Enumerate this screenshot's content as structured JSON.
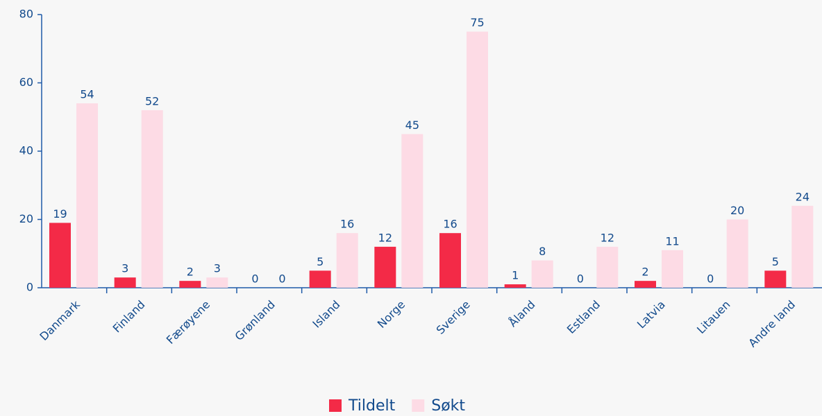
{
  "chart_data": {
    "type": "bar",
    "categories": [
      "Danmark",
      "Finland",
      "Færøyene",
      "Grønland",
      "Island",
      "Norge",
      "Sverige",
      "Åland",
      "Estland",
      "Latvia",
      "Litauen",
      "Andre land"
    ],
    "series": [
      {
        "name": "Tildelt",
        "color": "#f32a47",
        "values": [
          19,
          3,
          2,
          0,
          5,
          12,
          16,
          1,
          0,
          2,
          0,
          5
        ]
      },
      {
        "name": "Søkt",
        "color": "#fddbe5",
        "values": [
          54,
          52,
          3,
          0,
          16,
          45,
          75,
          8,
          12,
          11,
          20,
          24
        ]
      }
    ],
    "ylim": [
      0,
      80
    ],
    "yticks": [
      0,
      20,
      40,
      60,
      80
    ],
    "grid": false,
    "legend": "bottom"
  }
}
